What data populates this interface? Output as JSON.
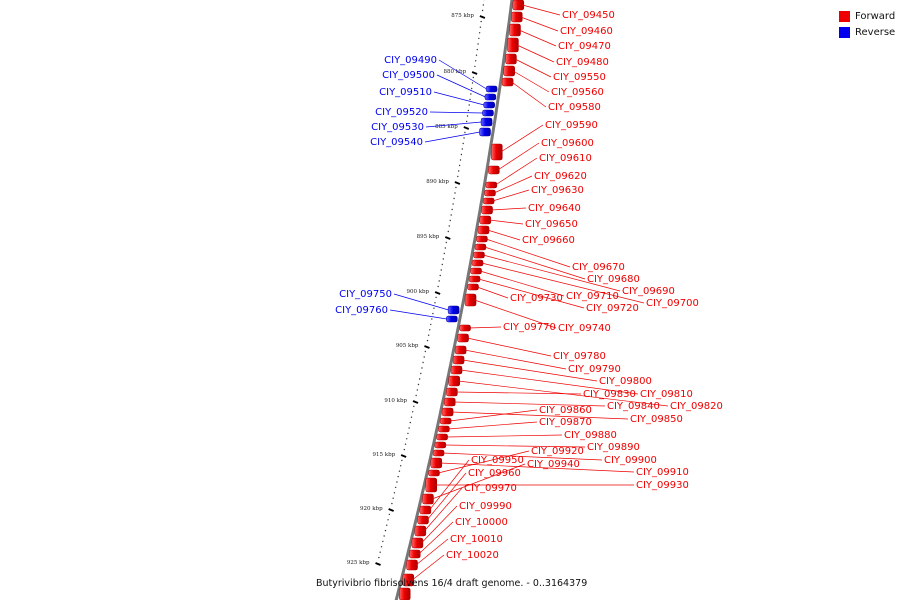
{
  "legend": {
    "forward": {
      "label": "Forward",
      "color": "#ee0000"
    },
    "reverse": {
      "label": "Reverse",
      "color": "#0000ee"
    }
  },
  "footer": "Butyrivibrio fibrisolvens 16/4 draft genome. - 0..3164379",
  "scale_labels": [
    "875 kbp",
    "880 kbp",
    "885 kbp",
    "890 kbp",
    "895 kbp",
    "900 kbp",
    "905 kbp",
    "910 kbp",
    "915 kbp",
    "920 kbp",
    "925 kbp"
  ],
  "forward_genes": [
    "CIY_09450",
    "CIY_09460",
    "CIY_09470",
    "CIY_09480",
    "CIY_09550",
    "CIY_09560",
    "CIY_09580",
    "CIY_09590",
    "CIY_09600",
    "CIY_09610",
    "CIY_09620",
    "CIY_09630",
    "CIY_09640",
    "CIY_09650",
    "CIY_09660",
    "CIY_09670",
    "CIY_09680",
    "CIY_09690",
    "CIY_09700",
    "CIY_09710",
    "CIY_09720",
    "CIY_09730",
    "CIY_09740",
    "CIY_09770",
    "CIY_09780",
    "CIY_09790",
    "CIY_09800",
    "CIY_09810",
    "CIY_09820",
    "CIY_09830",
    "CIY_09840",
    "CIY_09850",
    "CIY_09860",
    "CIY_09870",
    "CIY_09880",
    "CIY_09890",
    "CIY_09900",
    "CIY_09910",
    "CIY_09920",
    "CIY_09930",
    "CIY_09940",
    "CIY_09950",
    "CIY_09960",
    "CIY_09970",
    "CIY_09990",
    "CIY_10000",
    "CIY_10010",
    "CIY_10020"
  ],
  "reverse_genes": [
    "CIY_09490",
    "CIY_09500",
    "CIY_09510",
    "CIY_09520",
    "CIY_09530",
    "CIY_09540",
    "CIY_09750",
    "CIY_09760"
  ]
}
